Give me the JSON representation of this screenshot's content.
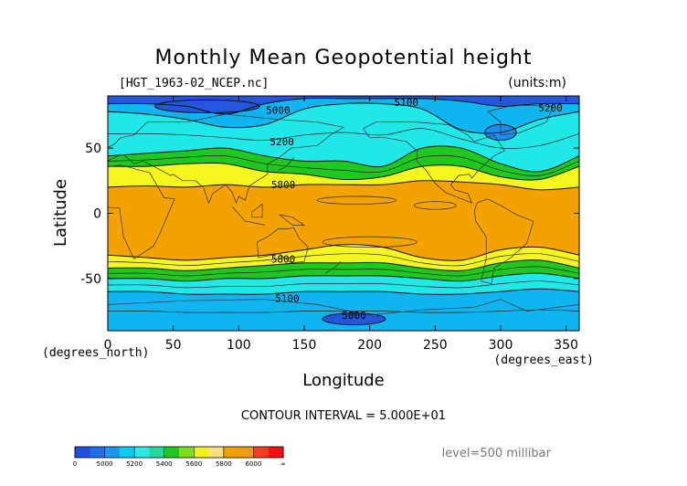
{
  "chart_data": {
    "type": "heatmap",
    "title": "Monthly Mean Geopotential height",
    "file_label": "[HGT_1963-02_NCEP.nc]",
    "units_label": "(units:m)",
    "xlabel": "Longitude",
    "ylabel": "Latitude",
    "x_unit_label": "(degrees_east)",
    "y_unit_label": "(degrees_north)",
    "xlim": [
      0,
      360
    ],
    "ylim": [
      -90,
      90
    ],
    "x_ticks": [
      0,
      50,
      100,
      150,
      200,
      250,
      300,
      350
    ],
    "y_ticks": [
      50,
      0,
      -50
    ],
    "contour_interval_text": "CONTOUR INTERVAL = 5.000E+01",
    "level_text": "level=500 millibar",
    "colorbar": {
      "labels": [
        "0",
        "5000",
        "5200",
        "5400",
        "5600",
        "5800",
        "6000",
        "∞"
      ],
      "colors": [
        "#1f4fe0",
        "#1e6ee8",
        "#1a98f0",
        "#10c8f0",
        "#2ee8e8",
        "#28d89a",
        "#1ec81e",
        "#7ae01e",
        "#f0f020",
        "#f8e080",
        "#f0a000",
        "#f09a1a",
        "#f04020",
        "#f81010"
      ]
    },
    "bands": [
      {
        "color": "#2456dc",
        "north": [
          90,
          90,
          90,
          90,
          90,
          90,
          90,
          90,
          90,
          90,
          90,
          90,
          90
        ],
        "south": [
          84,
          84,
          82,
          76,
          84,
          88,
          88,
          88,
          88,
          86,
          82,
          84,
          84
        ]
      },
      {
        "color": "#10b4f0",
        "north": [
          84,
          84,
          82,
          76,
          84,
          88,
          88,
          88,
          88,
          86,
          82,
          84,
          84
        ],
        "south": [
          78,
          76,
          72,
          66,
          68,
          80,
          84,
          84,
          80,
          64,
          62,
          72,
          78
        ]
      },
      {
        "color": "#20e8e8",
        "north": [
          78,
          76,
          72,
          66,
          68,
          80,
          84,
          84,
          80,
          64,
          62,
          72,
          78
        ],
        "south": [
          44,
          46,
          48,
          50,
          44,
          40,
          40,
          36,
          50,
          50,
          38,
          32,
          44
        ]
      },
      {
        "color": "#1ec81e",
        "north": [
          44,
          46,
          48,
          50,
          44,
          40,
          40,
          36,
          50,
          50,
          38,
          32,
          44
        ],
        "south": [
          36,
          36,
          38,
          38,
          32,
          30,
          26,
          28,
          36,
          36,
          28,
          26,
          36
        ]
      },
      {
        "color": "#f5f520",
        "north": [
          36,
          36,
          38,
          38,
          32,
          30,
          26,
          28,
          36,
          36,
          28,
          26,
          36
        ],
        "south": [
          20,
          21,
          20,
          22,
          20,
          22,
          22,
          22,
          25,
          24,
          22,
          18,
          20
        ]
      },
      {
        "color": "#f4a200",
        "north": [
          20,
          21,
          20,
          22,
          20,
          22,
          22,
          22,
          25,
          24,
          22,
          18,
          20
        ],
        "south": [
          -32,
          -34,
          -36,
          -34,
          -32,
          -28,
          -24,
          -26,
          -34,
          -36,
          -28,
          -26,
          -32
        ]
      },
      {
        "color": "#f5f520",
        "north": [
          -32,
          -34,
          -36,
          -34,
          -32,
          -28,
          -24,
          -26,
          -34,
          -36,
          -28,
          -26,
          -32
        ],
        "south": [
          -42,
          -42,
          -44,
          -42,
          -40,
          -38,
          -38,
          -38,
          -42,
          -44,
          -38,
          -36,
          -42
        ]
      },
      {
        "color": "#1ec81e",
        "north": [
          -42,
          -42,
          -44,
          -42,
          -40,
          -38,
          -38,
          -38,
          -42,
          -44,
          -38,
          -36,
          -42
        ],
        "south": [
          -50,
          -50,
          -52,
          -50,
          -50,
          -48,
          -48,
          -48,
          -50,
          -52,
          -48,
          -46,
          -50
        ]
      },
      {
        "color": "#20e8e8",
        "north": [
          -50,
          -50,
          -52,
          -50,
          -50,
          -48,
          -48,
          -48,
          -50,
          -52,
          -48,
          -46,
          -50
        ],
        "south": [
          -60,
          -60,
          -62,
          -62,
          -62,
          -60,
          -60,
          -60,
          -62,
          -62,
          -60,
          -58,
          -60
        ]
      },
      {
        "color": "#10b4f0",
        "north": [
          -60,
          -60,
          -62,
          -62,
          -62,
          -60,
          -60,
          -60,
          -62,
          -62,
          -60,
          -58,
          -60
        ],
        "south": [
          -90,
          -90,
          -90,
          -90,
          -90,
          -90,
          -90,
          -90,
          -90,
          -90,
          -90,
          -90,
          -90
        ]
      }
    ],
    "band_lons": [
      0,
      30,
      60,
      90,
      120,
      150,
      180,
      210,
      240,
      270,
      300,
      330,
      360
    ],
    "closed_regions": [
      {
        "color": "#2456dc",
        "lon": 188,
        "lat": -81,
        "rlon": 24,
        "rlat": 4.5
      },
      {
        "color": "#2456dc",
        "lon": 76,
        "lat": 82,
        "rlon": 40,
        "rlat": 5
      },
      {
        "color": "#1a8ef0",
        "lon": 300,
        "lat": 62,
        "rlon": 12,
        "rlat": 6
      }
    ],
    "contour_labels": [
      {
        "text": "5000",
        "lon": 130,
        "lat": 79
      },
      {
        "text": "5100",
        "lon": 228,
        "lat": 85
      },
      {
        "text": "5200",
        "lon": 338,
        "lat": 81
      },
      {
        "text": "5200",
        "lon": 133,
        "lat": 55
      },
      {
        "text": "5800",
        "lon": 134,
        "lat": 22
      },
      {
        "text": "5800",
        "lon": 134,
        "lat": -35
      },
      {
        "text": "5100",
        "lon": 137,
        "lat": -65
      },
      {
        "text": "5000",
        "lon": 188,
        "lat": -78
      }
    ]
  }
}
